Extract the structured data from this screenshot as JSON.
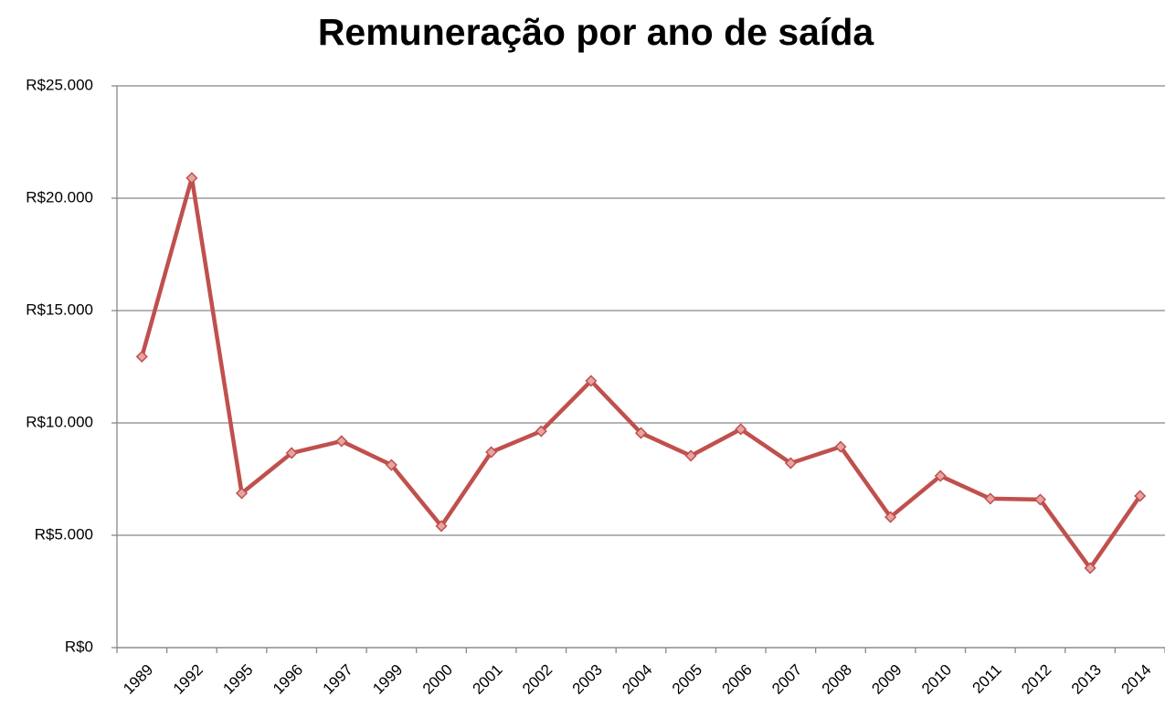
{
  "chart_data": {
    "type": "line",
    "title": "Remuneração por ano de saída",
    "categories": [
      "1989",
      "1992",
      "1995",
      "1996",
      "1997",
      "1999",
      "2000",
      "2001",
      "2002",
      "2003",
      "2004",
      "2005",
      "2006",
      "2007",
      "2008",
      "2009",
      "2010",
      "2011",
      "2012",
      "2013",
      "2014"
    ],
    "series": [
      {
        "name": "Remuneração",
        "color": "#c0504d",
        "marker_fill": "#e6a4a3",
        "values": [
          12950,
          20900,
          6870,
          8660,
          9190,
          8130,
          5410,
          8700,
          9630,
          11870,
          9550,
          8540,
          9720,
          8210,
          8940,
          5810,
          7640,
          6630,
          6590,
          3540,
          6750
        ]
      }
    ],
    "ylim": [
      0,
      25000
    ],
    "yticks": [
      {
        "value": 0,
        "label": "R$0"
      },
      {
        "value": 5000,
        "label": "R$5.000"
      },
      {
        "value": 10000,
        "label": "R$10.000"
      },
      {
        "value": 15000,
        "label": "R$15.000"
      },
      {
        "value": 20000,
        "label": "R$20.000"
      },
      {
        "value": 25000,
        "label": "R$25.000"
      }
    ],
    "grid": true
  }
}
